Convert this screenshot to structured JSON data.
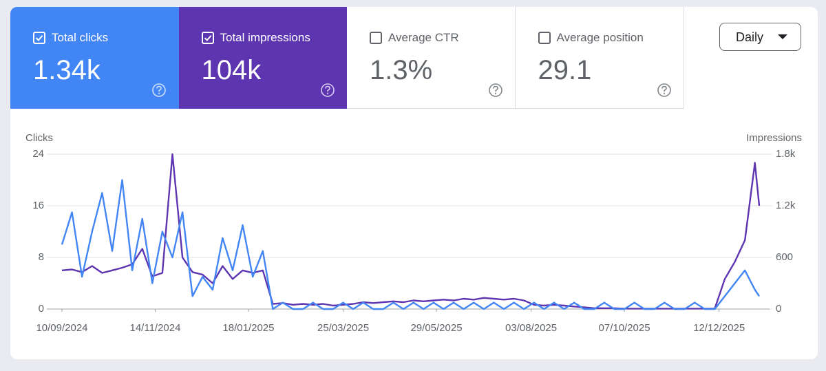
{
  "metrics": [
    {
      "label": "Total clicks",
      "value": "1.34k",
      "selected": true,
      "color": "#4285f4"
    },
    {
      "label": "Total impressions",
      "value": "104k",
      "selected": true,
      "color": "#5e35b1"
    },
    {
      "label": "Average CTR",
      "value": "1.3%",
      "selected": false,
      "color": "#ffffff"
    },
    {
      "label": "Average position",
      "value": "29.1",
      "selected": false,
      "color": "#ffffff"
    }
  ],
  "granularity": "Daily",
  "chart_data": {
    "type": "line",
    "y_label": "Clicks",
    "y2_label": "Impressions",
    "x": [
      "10/09/2024",
      "17/09/2024",
      "24/09/2024",
      "01/10/2024",
      "08/10/2024",
      "15/10/2024",
      "22/10/2024",
      "29/10/2024",
      "05/11/2024",
      "12/11/2024",
      "19/11/2024",
      "26/11/2024",
      "03/12/2024",
      "10/12/2024",
      "17/12/2024",
      "24/12/2024",
      "31/12/2024",
      "07/01/2025",
      "14/01/2025",
      "21/01/2025",
      "28/01/2025",
      "04/02/2025",
      "11/02/2025",
      "18/02/2025",
      "25/02/2025",
      "04/03/2025",
      "11/03/2025",
      "18/03/2025",
      "25/03/2025",
      "01/04/2025",
      "08/04/2025",
      "15/04/2025",
      "22/04/2025",
      "29/04/2025",
      "06/05/2025",
      "13/05/2025",
      "20/05/2025",
      "27/05/2025",
      "03/06/2025",
      "10/06/2025",
      "17/06/2025",
      "24/06/2025",
      "01/07/2025",
      "08/07/2025",
      "15/07/2025",
      "22/07/2025",
      "29/07/2025",
      "05/08/2025",
      "12/08/2025",
      "19/08/2025",
      "26/08/2025",
      "02/09/2025",
      "09/09/2025",
      "16/09/2025",
      "23/09/2025",
      "30/09/2025",
      "07/10/2025",
      "14/10/2025",
      "21/10/2025",
      "28/10/2025",
      "04/11/2025",
      "11/11/2025",
      "18/11/2025",
      "25/11/2025",
      "02/12/2025",
      "09/12/2025",
      "16/12/2025",
      "23/12/2025",
      "30/12/2025",
      "06/01/2026",
      "09/01/2026"
    ],
    "series": [
      {
        "name": "Impressions",
        "color": "#5e35b1",
        "axis": "y2",
        "values": [
          450,
          460,
          430,
          500,
          420,
          450,
          480,
          520,
          700,
          380,
          420,
          1800,
          600,
          430,
          400,
          300,
          500,
          350,
          450,
          420,
          450,
          60,
          70,
          50,
          60,
          50,
          60,
          40,
          50,
          60,
          80,
          70,
          80,
          90,
          80,
          100,
          90,
          100,
          110,
          100,
          120,
          110,
          130,
          120,
          110,
          120,
          100,
          50,
          40,
          50,
          40,
          30,
          20,
          10,
          10,
          10,
          5,
          5,
          5,
          5,
          5,
          5,
          5,
          5,
          5,
          5,
          350,
          550,
          800,
          1700,
          1200
        ]
      },
      {
        "name": "Clicks",
        "color": "#4285f4",
        "values": [
          10,
          15,
          5,
          12,
          18,
          9,
          20,
          6,
          14,
          4,
          12,
          8,
          15,
          2,
          5,
          3,
          11,
          6,
          13,
          5,
          9,
          0,
          1,
          0,
          0,
          1,
          0,
          0,
          1,
          0,
          1,
          0,
          0,
          1,
          0,
          1,
          0,
          1,
          0,
          1,
          0,
          1,
          0,
          1,
          0,
          1,
          0,
          1,
          0,
          1,
          0,
          1,
          0,
          0,
          1,
          0,
          0,
          1,
          0,
          0,
          1,
          0,
          0,
          1,
          0,
          0,
          2,
          4,
          6,
          3,
          2
        ]
      }
    ],
    "xlim": [
      "10/09/2024",
      "09/01/2026"
    ],
    "xticks": [
      "10/09/2024",
      "14/11/2024",
      "18/01/2025",
      "25/03/2025",
      "29/05/2025",
      "03/08/2025",
      "07/10/2025",
      "12/12/2025"
    ],
    "ylim": [
      0,
      24
    ],
    "yticks": [
      0,
      8,
      16,
      24
    ],
    "y2lim": [
      0,
      1800
    ],
    "y2ticks": [
      0,
      600,
      {
        "value": 1200,
        "label": "1.2k"
      },
      {
        "value": 1800,
        "label": "1.8k"
      }
    ],
    "grid": true
  }
}
